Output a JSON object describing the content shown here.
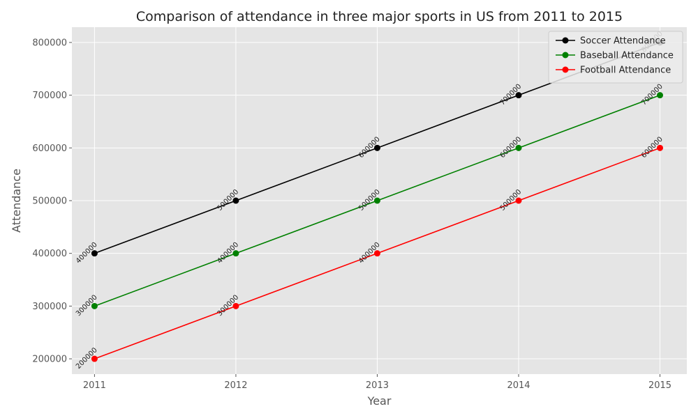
{
  "chart_data": {
    "type": "line",
    "title": "Comparison of attendance in three major sports in US from 2011 to 2015",
    "xlabel": "Year",
    "ylabel": "Attendance",
    "x": [
      2011,
      2012,
      2013,
      2014,
      2015
    ],
    "xlim": [
      2010.84,
      2015.19
    ],
    "ylim": [
      171000,
      829000
    ],
    "y_ticks": [
      200000,
      300000,
      400000,
      500000,
      600000,
      700000,
      800000
    ],
    "grid": true,
    "legend_position": "top-right",
    "series": [
      {
        "name": "Soccer Attendance",
        "color": "#000000",
        "values": [
          400000,
          500000,
          600000,
          700000,
          800000
        ]
      },
      {
        "name": "Baseball Attendance",
        "color": "#008000",
        "values": [
          300000,
          400000,
          500000,
          600000,
          700000
        ]
      },
      {
        "name": "Football Attendance",
        "color": "#ff0000",
        "values": [
          200000,
          300000,
          400000,
          500000,
          600000
        ]
      }
    ]
  },
  "colors": {
    "plot_background": "#e5e5e5",
    "grid": "#ffffff"
  }
}
